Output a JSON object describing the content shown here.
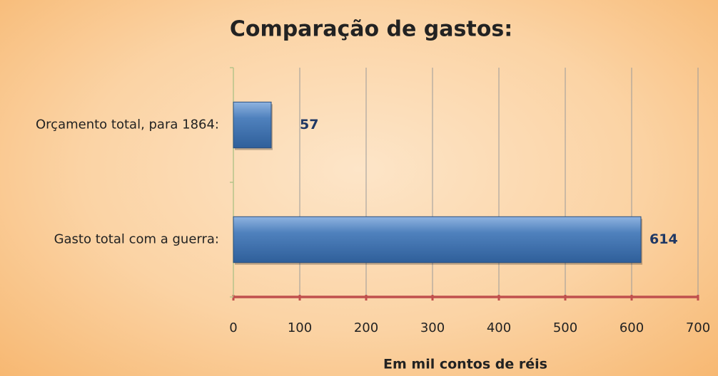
{
  "chart_data": {
    "type": "bar",
    "orientation": "horizontal",
    "title": "Comparação de gastos:",
    "x_label": "Em mil contos de réis",
    "categories": [
      "Orçamento total, para 1864:",
      "Gasto total com a guerra:"
    ],
    "values": [
      57,
      614
    ],
    "color": "#4f81bd",
    "xlim": [
      0,
      700
    ],
    "xticks": [
      0,
      100,
      200,
      300,
      400,
      500,
      600,
      700
    ],
    "grid": true
  }
}
